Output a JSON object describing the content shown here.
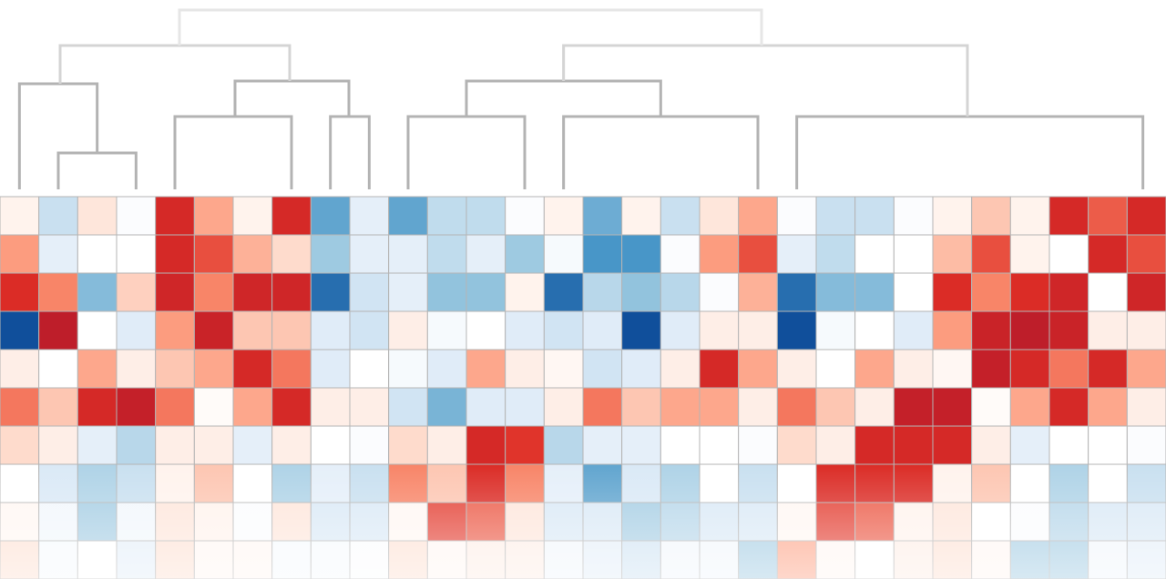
{
  "chart_data": {
    "type": "heatmap",
    "title": "",
    "xlabel": "",
    "ylabel": "",
    "rows": 10,
    "cols": 30,
    "value_range": [
      -3,
      3
    ],
    "colors": {
      "low": "#084594",
      "mid": "#ffffff",
      "high": "#b2182b",
      "cell_border": "#b5b5b5",
      "dendrogram": "#b3b3b3"
    },
    "values": [
      [
        0.3,
        -1.0,
        0.6,
        -0.1,
        2.4,
        1.3,
        0.3,
        2.4,
        -2.0,
        -0.6,
        -2.0,
        -1.1,
        -1.1,
        -0.1,
        0.3,
        -1.9,
        0.3,
        -1.0,
        0.6,
        1.3,
        -0.1,
        -1.0,
        -1.0,
        -0.1,
        0.3,
        1.0,
        0.3,
        2.4,
        1.9,
        2.4
      ],
      [
        1.4,
        -0.6,
        0.0,
        0.0,
        2.4,
        2.0,
        1.2,
        0.8,
        -1.5,
        -0.6,
        -0.6,
        -1.1,
        -0.6,
        -1.5,
        -0.2,
        -2.2,
        -2.2,
        -0.1,
        1.4,
        2.0,
        -0.6,
        -1.1,
        0.0,
        0.0,
        1.1,
        2.0,
        0.3,
        0.0,
        2.4,
        2.0
      ],
      [
        2.3,
        1.6,
        -1.7,
        0.9,
        2.5,
        1.6,
        2.5,
        2.5,
        -2.6,
        -0.9,
        -0.6,
        -1.6,
        -1.6,
        0.3,
        -2.6,
        -1.2,
        -1.6,
        -1.2,
        -0.1,
        1.2,
        -2.6,
        -1.7,
        -1.7,
        0.0,
        2.3,
        1.6,
        2.3,
        2.5,
        0.0,
        2.5
      ],
      [
        -2.9,
        2.8,
        0.0,
        -0.7,
        1.4,
        2.6,
        1.0,
        1.0,
        -0.7,
        -0.9,
        0.4,
        -0.2,
        0.0,
        -0.7,
        -0.9,
        -0.7,
        -2.9,
        -0.7,
        0.4,
        0.4,
        -2.9,
        -0.2,
        0.0,
        -0.7,
        1.4,
        2.6,
        2.8,
        2.6,
        0.4,
        0.4
      ],
      [
        0.4,
        0.0,
        1.3,
        0.4,
        1.0,
        1.3,
        2.4,
        1.7,
        -0.7,
        0.0,
        -0.2,
        -0.7,
        1.3,
        0.4,
        0.2,
        -0.9,
        -0.7,
        0.4,
        2.4,
        1.3,
        0.4,
        0.0,
        1.3,
        0.4,
        0.2,
        2.7,
        2.4,
        1.7,
        2.4,
        1.3
      ],
      [
        1.7,
        1.0,
        2.4,
        2.7,
        1.7,
        0.1,
        1.3,
        2.4,
        0.4,
        0.4,
        -0.9,
        -1.8,
        -0.7,
        -0.7,
        0.4,
        1.7,
        1.0,
        1.3,
        1.3,
        0.4,
        1.7,
        1.0,
        0.4,
        2.7,
        2.7,
        0.1,
        1.3,
        2.4,
        1.3,
        0.4
      ],
      [
        0.8,
        0.4,
        -0.6,
        -1.2,
        0.4,
        0.4,
        -0.6,
        0.4,
        0.0,
        -0.1,
        0.8,
        0.4,
        2.4,
        2.2,
        -1.2,
        -0.6,
        -0.6,
        0.0,
        0.0,
        -0.1,
        0.8,
        0.4,
        2.4,
        2.4,
        2.4,
        0.4,
        -0.6,
        0.0,
        0.0,
        -0.1
      ],
      [
        0.0,
        -0.8,
        -1.3,
        -1.0,
        0.3,
        1.0,
        0.0,
        -1.3,
        -0.6,
        -1.0,
        1.6,
        1.0,
        2.3,
        1.6,
        -0.6,
        -2.0,
        -0.8,
        -1.3,
        0.0,
        -1.0,
        0.0,
        2.3,
        2.3,
        2.3,
        0.3,
        1.0,
        0.0,
        -1.3,
        0.0,
        -1.0
      ],
      [
        0.2,
        -0.3,
        -1.4,
        -0.3,
        0.6,
        0.3,
        -0.1,
        0.6,
        -0.8,
        -0.8,
        0.2,
        2.1,
        1.9,
        0.6,
        -0.8,
        -0.8,
        -1.4,
        -1.2,
        -0.8,
        -0.8,
        0.2,
        2.1,
        1.9,
        0.3,
        0.6,
        0.0,
        -0.1,
        -1.2,
        -0.8,
        -0.8
      ],
      [
        0.7,
        -0.2,
        0.0,
        -0.6,
        0.7,
        0.2,
        0.2,
        -0.2,
        -0.2,
        -0.1,
        0.7,
        0.2,
        0.4,
        0.4,
        -0.3,
        -0.6,
        -0.9,
        -0.3,
        -0.3,
        -1.4,
        1.3,
        0.2,
        0.0,
        0.4,
        0.7,
        0.2,
        -1.4,
        -1.4,
        -0.3,
        -0.6
      ]
    ],
    "column_dendrogram": {
      "leaf_order": [
        0,
        1,
        2,
        3,
        4,
        5,
        6,
        7,
        8,
        9,
        10,
        11,
        12,
        13,
        14,
        15,
        16,
        17,
        18,
        19,
        20,
        21,
        22,
        23,
        24,
        25,
        26,
        27,
        28,
        29
      ],
      "merges": [
        {
          "left": [
            1.5,
            2.5
          ],
          "right": null,
          "height": 1.0
        },
        {
          "cluster": "A",
          "height": 2.1
        },
        {
          "cluster": "B",
          "height": 2.9
        }
      ]
    }
  }
}
